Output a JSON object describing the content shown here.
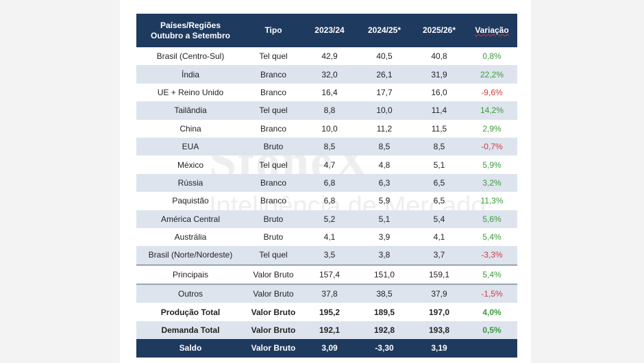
{
  "watermark": {
    "brand": "StoneX",
    "subtitle": "Inteligência de Mercado"
  },
  "header": {
    "col1_line1": "Países/Regiões",
    "col1_line2": "Outubro a Setembro",
    "tipo": "Tipo",
    "y1": "2023/24",
    "y2": "2024/25*",
    "y3": "2025/26*",
    "variacao": "Variação"
  },
  "rows": [
    {
      "region": "Brasil (Centro-Sul)",
      "tipo": "Tel quel",
      "y1": "42,9",
      "y2": "40,5",
      "y3": "40,8",
      "var": "0,8%"
    },
    {
      "region": "Índia",
      "tipo": "Branco",
      "y1": "32,0",
      "y2": "26,1",
      "y3": "31,9",
      "var": "22,2%"
    },
    {
      "region": "UE + Reino Unido",
      "tipo": "Branco",
      "y1": "16,4",
      "y2": "17,7",
      "y3": "16,0",
      "var": "-9,6%"
    },
    {
      "region": "Tailândia",
      "tipo": "Tel quel",
      "y1": "8,8",
      "y2": "10,0",
      "y3": "11,4",
      "var": "14,2%"
    },
    {
      "region": "China",
      "tipo": "Branco",
      "y1": "10,0",
      "y2": "11,2",
      "y3": "11,5",
      "var": "2,9%"
    },
    {
      "region": "EUA",
      "tipo": "Bruto",
      "y1": "8,5",
      "y2": "8,5",
      "y3": "8,5",
      "var": "-0,7%"
    },
    {
      "region": "México",
      "tipo": "Tel quel",
      "y1": "4,7",
      "y2": "4,8",
      "y3": "5,1",
      "var": "5,9%"
    },
    {
      "region": "Rússia",
      "tipo": "Branco",
      "y1": "6,8",
      "y2": "6,3",
      "y3": "6,5",
      "var": "3,2%"
    },
    {
      "region": "Paquistão",
      "tipo": "Branco",
      "y1": "6,8",
      "y2": "5,9",
      "y3": "6,5",
      "var": "11,3%"
    },
    {
      "region": "América Central",
      "tipo": "Bruto",
      "y1": "5,2",
      "y2": "5,1",
      "y3": "5,4",
      "var": "5,6%"
    },
    {
      "region": "Austrália",
      "tipo": "Bruto",
      "y1": "4,1",
      "y2": "3,9",
      "y3": "4,1",
      "var": "5,4%"
    },
    {
      "region": "Brasil (Norte/Nordeste)",
      "tipo": "Tel quel",
      "y1": "3,5",
      "y2": "3,8",
      "y3": "3,7",
      "var": "-3,3%"
    },
    {
      "region": "Principais",
      "tipo": "Valor Bruto",
      "y1": "157,4",
      "y2": "151,0",
      "y3": "159,1",
      "var": "5,4%"
    },
    {
      "region": "Outros",
      "tipo": "Valor Bruto",
      "y1": "37,8",
      "y2": "38,5",
      "y3": "37,9",
      "var": "-1,5%"
    },
    {
      "region": "Produção Total",
      "tipo": "Valor Bruto",
      "y1": "195,2",
      "y2": "189,5",
      "y3": "197,0",
      "var": "4,0%"
    },
    {
      "region": "Demanda Total",
      "tipo": "Valor Bruto",
      "y1": "192,1",
      "y2": "192,8",
      "y3": "193,8",
      "var": "0,5%"
    },
    {
      "region": "Saldo",
      "tipo": "Valor Bruto",
      "y1": "3,09",
      "y2": "-3,30",
      "y3": "3,19",
      "var": ""
    }
  ]
}
